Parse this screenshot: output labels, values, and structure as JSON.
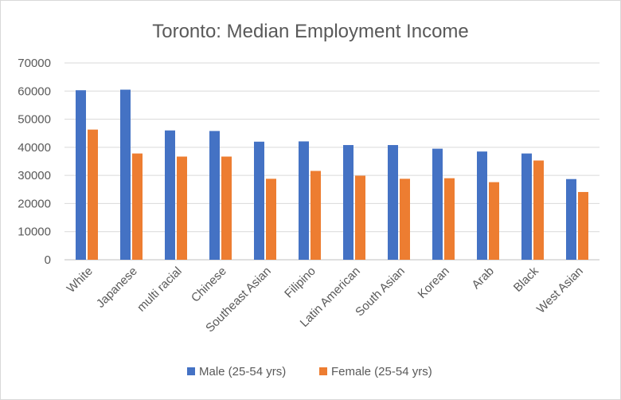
{
  "chart_data": {
    "type": "bar",
    "title": "Toronto: Median Employment Income",
    "xlabel": "",
    "ylabel": "",
    "categories": [
      "White",
      "Japanese",
      "multi racial",
      "Chinese",
      "Southeast Asian",
      "Filipino",
      "Latin American",
      "South Asian",
      "Korean",
      "Arab",
      "Black",
      "West Asian"
    ],
    "series": [
      {
        "name": "Male (25-54 yrs)",
        "color": "#4472c4",
        "values": [
          60300,
          60500,
          46000,
          45800,
          42000,
          42100,
          40800,
          40800,
          39500,
          38500,
          37800,
          28700
        ]
      },
      {
        "name": "Female (25-54 yrs)",
        "color": "#ed7d31",
        "values": [
          46300,
          37800,
          36700,
          36700,
          28800,
          31600,
          29900,
          28800,
          29000,
          27600,
          35300,
          24100
        ]
      }
    ],
    "ylim": [
      0,
      70000
    ],
    "yticks": [
      "0",
      "10000",
      "20000",
      "30000",
      "40000",
      "50000",
      "60000",
      "70000"
    ],
    "grid": true,
    "legend_position": "bottom"
  }
}
